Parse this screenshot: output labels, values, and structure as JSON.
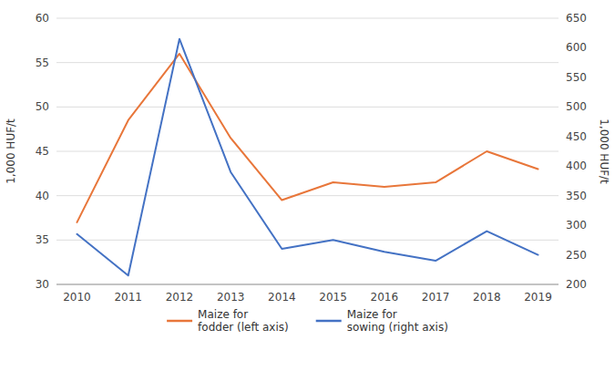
{
  "chart_data": {
    "type": "line",
    "x": [
      2010,
      2011,
      2012,
      2013,
      2014,
      2015,
      2016,
      2017,
      2018,
      2019
    ],
    "xlim": [
      2009.6,
      2019.4
    ],
    "xticks": [
      2010,
      2011,
      2012,
      2013,
      2014,
      2015,
      2016,
      2017,
      2018,
      2019
    ],
    "series": [
      {
        "name": "Maize for\nfodder (left axis)",
        "color": "#E8763A",
        "values": [
          37.0,
          48.5,
          56.0,
          46.5,
          39.5,
          41.5,
          41.0,
          41.5,
          45.0,
          43.0
        ]
      },
      {
        "name": "Maize for\nsowing (right axis)",
        "color": "#4472C4",
        "axis": "y2",
        "values": [
          285,
          215,
          615,
          390,
          260,
          275,
          255,
          240,
          290,
          250
        ]
      }
    ],
    "ylabel": "1,000 HUF/t",
    "y2label": "1,000 HUF/t",
    "ylim": [
      30,
      60
    ],
    "yticks": [
      30,
      35,
      40,
      45,
      50,
      55,
      60
    ],
    "y2lim": [
      200,
      650
    ],
    "y2ticks": [
      200,
      250,
      300,
      350,
      400,
      450,
      500,
      550,
      600,
      650
    ],
    "grid": true,
    "legend": "bottom"
  }
}
